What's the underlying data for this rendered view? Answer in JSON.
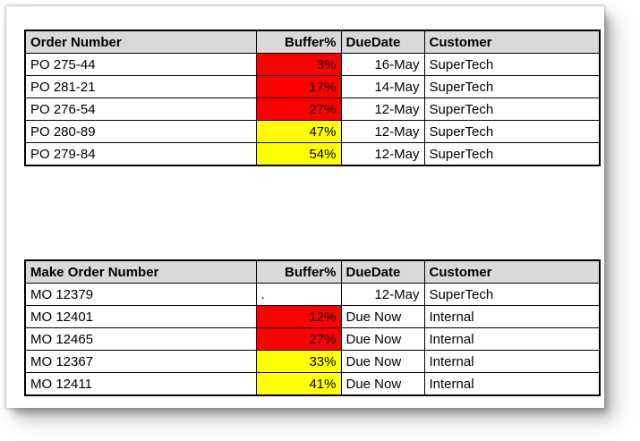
{
  "colors": {
    "red": "#FF0000",
    "yellow": "#FFFF00",
    "header_bg": "#D9D9D9"
  },
  "purchase_table": {
    "headers": {
      "order": "Order Number",
      "buffer": "Buffer%",
      "due": "DueDate",
      "customer": "Customer"
    },
    "rows": [
      {
        "order": "PO 275-44",
        "buffer": "3%",
        "buffer_bg": "#FF0000",
        "due": "16-May",
        "customer": "SuperTech"
      },
      {
        "order": "PO 281-21",
        "buffer": "17%",
        "buffer_bg": "#FF0000",
        "due": "14-May",
        "customer": "SuperTech"
      },
      {
        "order": "PO 276-54",
        "buffer": "27%",
        "buffer_bg": "#FF0000",
        "due": "12-May",
        "customer": "SuperTech"
      },
      {
        "order": "PO 280-89",
        "buffer": "47%",
        "buffer_bg": "#FFFF00",
        "due": "12-May",
        "customer": "SuperTech"
      },
      {
        "order": "PO 279-84",
        "buffer": "54%",
        "buffer_bg": "#FFFF00",
        "due": "12-May",
        "customer": "SuperTech"
      }
    ]
  },
  "make_table": {
    "headers": {
      "order": "Make Order Number",
      "buffer": "Buffer%",
      "due": "DueDate",
      "customer": "Customer"
    },
    "rows": [
      {
        "order": "MO 12379",
        "buffer": ".",
        "buffer_bg": "",
        "due": "12-May",
        "customer": "SuperTech"
      },
      {
        "order": "MO 12401",
        "buffer": "12%",
        "buffer_bg": "#FF0000",
        "due": "Due Now",
        "customer": "Internal"
      },
      {
        "order": "MO 12465",
        "buffer": "27%",
        "buffer_bg": "#FF0000",
        "due": "Due Now",
        "customer": "Internal"
      },
      {
        "order": "MO 12367",
        "buffer": "33%",
        "buffer_bg": "#FFFF00",
        "due": "Due Now",
        "customer": "Internal"
      },
      {
        "order": "MO 12411",
        "buffer": "41%",
        "buffer_bg": "#FFFF00",
        "due": "Due Now",
        "customer": "Internal"
      }
    ]
  }
}
